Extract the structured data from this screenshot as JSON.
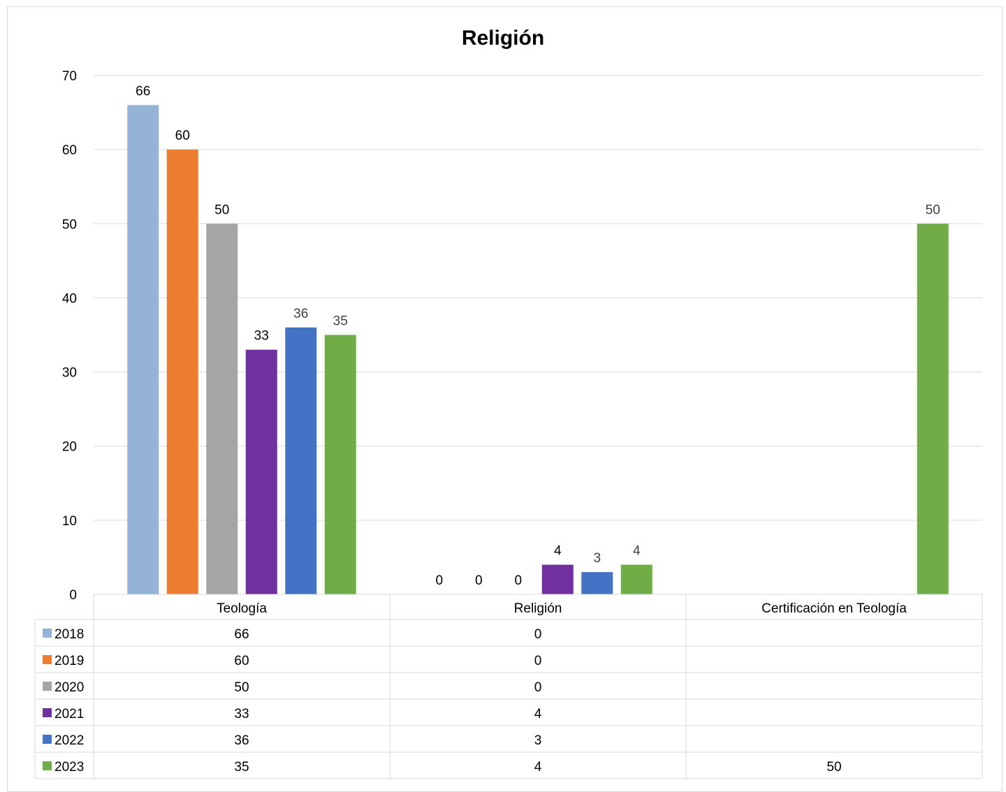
{
  "chart_data": {
    "type": "bar",
    "title": "Religión",
    "categories": [
      "Teología",
      "Religión",
      "Certificación en Teología"
    ],
    "ylim": [
      0,
      70
    ],
    "yticks": [
      0,
      10,
      20,
      30,
      40,
      50,
      60,
      70
    ],
    "grid": true,
    "legend": "data-table",
    "series": [
      {
        "name": "2018",
        "color": "#95b3d7",
        "values": [
          66,
          0,
          null
        ],
        "labels": [
          "66",
          "0",
          ""
        ]
      },
      {
        "name": "2019",
        "color": "#ed7d31",
        "values": [
          60,
          0,
          null
        ],
        "labels": [
          "60",
          "0",
          ""
        ]
      },
      {
        "name": "2020",
        "color": "#a5a5a5",
        "values": [
          50,
          0,
          null
        ],
        "labels": [
          "50",
          "0",
          ""
        ]
      },
      {
        "name": "2021",
        "color": "#7030a0",
        "values": [
          33,
          4,
          null
        ],
        "labels": [
          "33",
          "4",
          ""
        ]
      },
      {
        "name": "2022",
        "color": "#4472c4",
        "values": [
          36,
          3,
          null
        ],
        "labels": [
          "36",
          "3",
          ""
        ]
      },
      {
        "name": "2023",
        "color": "#70ad47",
        "values": [
          35,
          4,
          50
        ],
        "labels": [
          "35",
          "4",
          "50"
        ]
      }
    ]
  }
}
